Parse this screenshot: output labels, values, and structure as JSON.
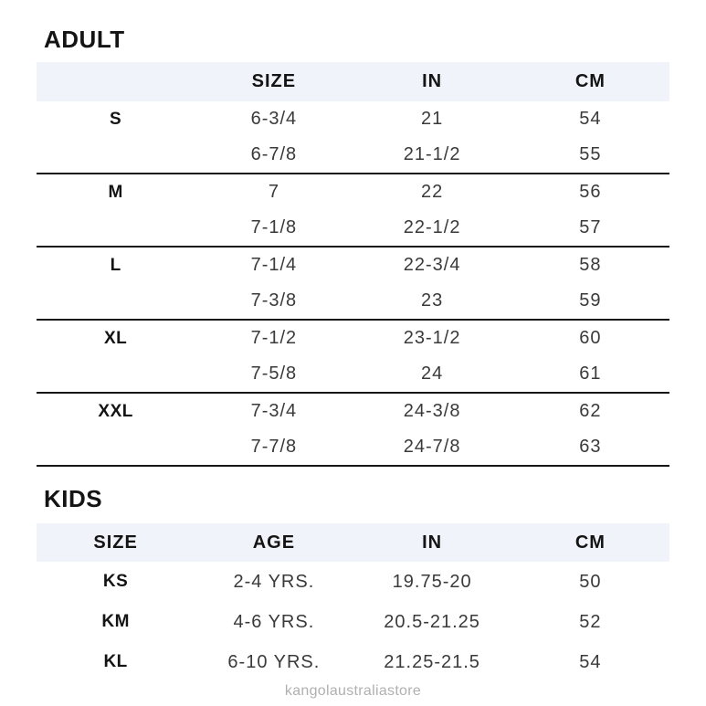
{
  "colors": {
    "header_background": "#f0f3f9",
    "divider_line": "#161616",
    "heading_text": "#141414",
    "data_text": "#3a3a3a",
    "watermark_text": "#b0b0b0"
  },
  "adult": {
    "title": "ADULT",
    "columns": [
      "",
      "SIZE",
      "IN",
      "CM"
    ],
    "groups": [
      {
        "label": "S",
        "rows": [
          [
            "6-3/4",
            "21",
            "54"
          ],
          [
            "6-7/8",
            "21-1/2",
            "55"
          ]
        ]
      },
      {
        "label": "M",
        "rows": [
          [
            "7",
            "22",
            "56"
          ],
          [
            "7-1/8",
            "22-1/2",
            "57"
          ]
        ]
      },
      {
        "label": "L",
        "rows": [
          [
            "7-1/4",
            "22-3/4",
            "58"
          ],
          [
            "7-3/8",
            "23",
            "59"
          ]
        ]
      },
      {
        "label": "XL",
        "rows": [
          [
            "7-1/2",
            "23-1/2",
            "60"
          ],
          [
            "7-5/8",
            "24",
            "61"
          ]
        ]
      },
      {
        "label": "XXL",
        "rows": [
          [
            "7-3/4",
            "24-3/8",
            "62"
          ],
          [
            "7-7/8",
            "24-7/8",
            "63"
          ]
        ]
      }
    ]
  },
  "kids": {
    "title": "KIDS",
    "columns": [
      "SIZE",
      "AGE",
      "IN",
      "CM"
    ],
    "rows": [
      [
        "KS",
        "2-4 YRS.",
        "19.75-20",
        "50"
      ],
      [
        "KM",
        "4-6 YRS.",
        "20.5-21.25",
        "52"
      ],
      [
        "KL",
        "6-10 YRS.",
        "21.25-21.5",
        "54"
      ]
    ]
  },
  "watermark": "kangolaustraliastore"
}
